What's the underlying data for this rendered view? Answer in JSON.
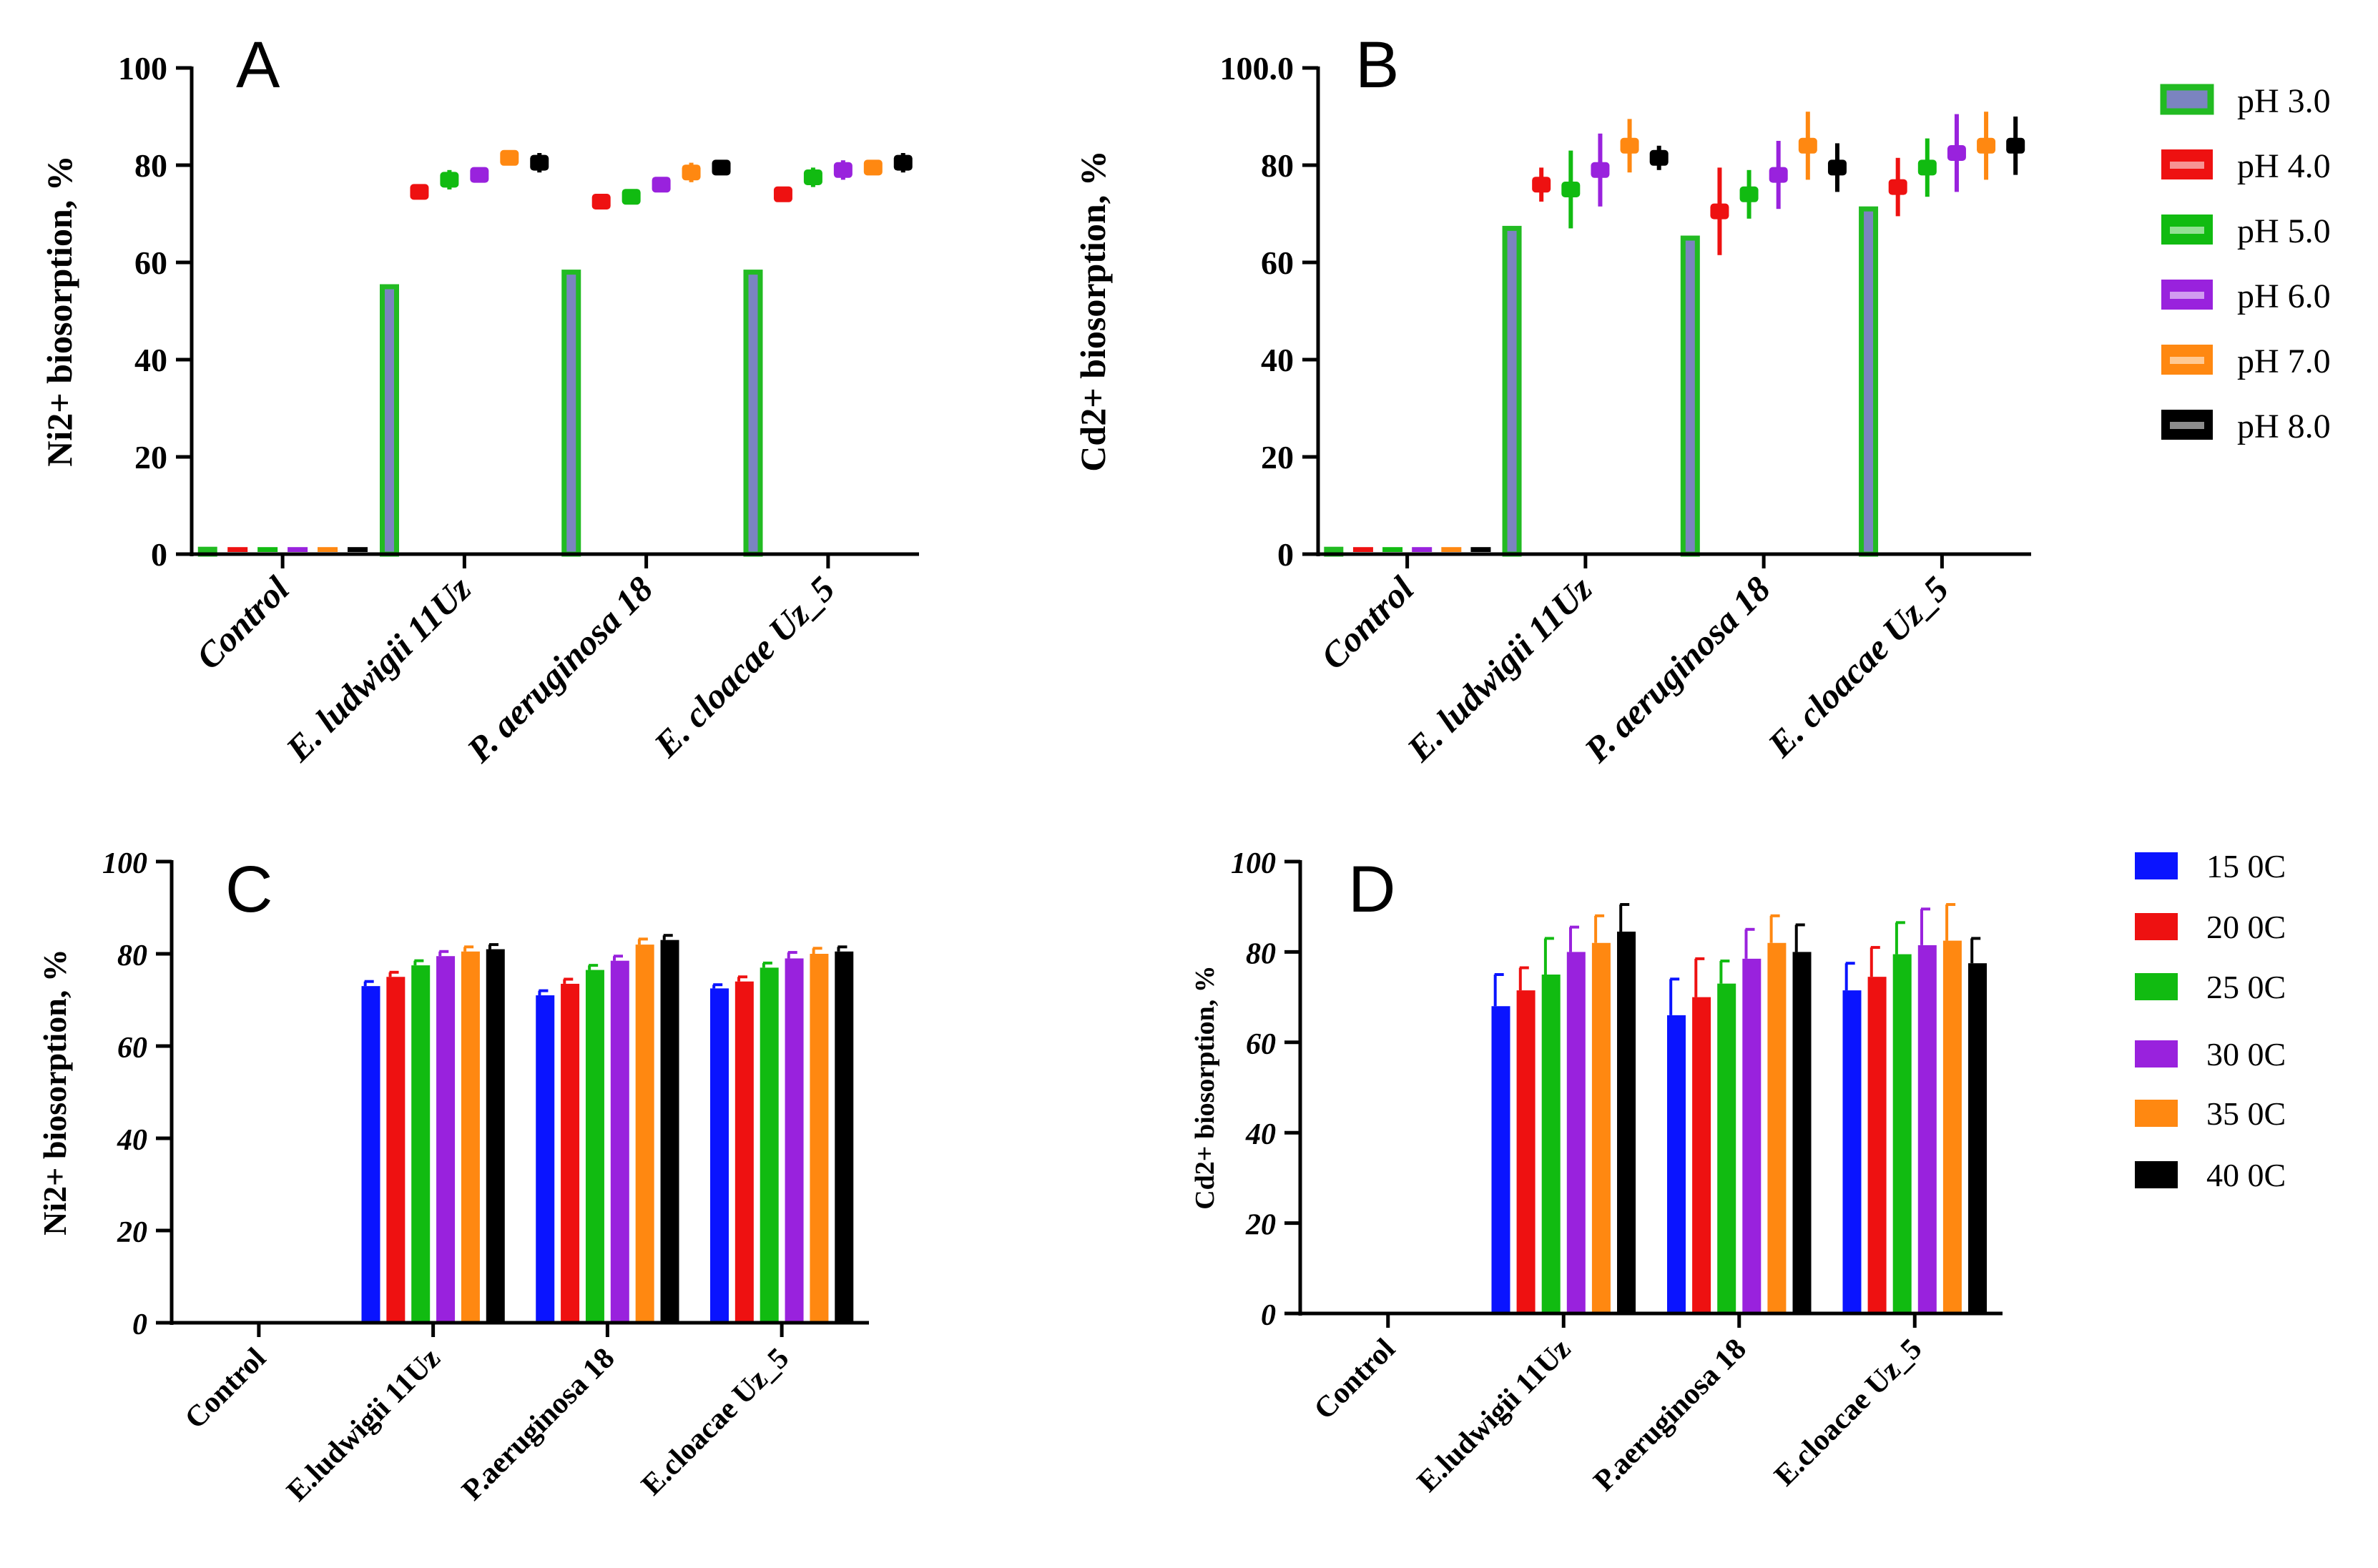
{
  "colors": {
    "pH 3.0": "#22bb22",
    "pH 4.0": "#ee1111",
    "pH 5.0": "#11bb11",
    "pH 6.0": "#9922dd",
    "pH 7.0": "#ff8811",
    "pH 8.0": "#000000",
    "15 0C": "#0a14ff",
    "20 0C": "#ee1111",
    "25 0C": "#11bb11",
    "30 0C": "#9922dd",
    "35 0C": "#ff8811",
    "40 0C": "#000000"
  },
  "legend_ph": [
    "pH 3.0",
    "pH 4.0",
    "pH 5.0",
    "pH 6.0",
    "pH 7.0",
    "pH 8.0"
  ],
  "legend_temp": [
    "15 0C",
    "20 0C",
    "25 0C",
    "30 0C",
    "35 0C",
    "40 0C"
  ],
  "chart_data": [
    {
      "panel": "A",
      "type": "bar",
      "ylabel": "Ni2+ biosorption, %",
      "ylim": [
        0,
        100
      ],
      "yticks": [
        0,
        20,
        40,
        60,
        80,
        100
      ],
      "categories": [
        "Control",
        "E. ludwigii 11Uz",
        "P. aeruginosa 18",
        "E. cloacae Uz_5"
      ],
      "series": [
        {
          "name": "pH 3.0",
          "values": [
            1,
            55,
            58,
            58
          ]
        },
        {
          "name": "pH 4.0",
          "values": [
            1,
            74.5,
            72.5,
            74
          ]
        },
        {
          "name": "pH 5.0",
          "values": [
            1,
            77,
            73.5,
            77.5
          ]
        },
        {
          "name": "pH 6.0",
          "values": [
            1,
            78,
            76,
            79
          ]
        },
        {
          "name": "pH 7.0",
          "values": [
            1,
            81.5,
            78.5,
            79.5
          ]
        },
        {
          "name": "pH 8.0",
          "values": [
            1,
            80.5,
            79.5,
            80.5
          ]
        }
      ],
      "errors": [
        [
          0,
          0,
          0,
          0
        ],
        [
          0,
          1.5,
          1,
          1
        ],
        [
          0,
          2,
          1.5,
          2
        ],
        [
          0,
          1.5,
          1,
          2
        ],
        [
          0,
          1.5,
          2,
          1.5
        ],
        [
          0,
          2,
          1.5,
          2
        ]
      ]
    },
    {
      "panel": "B",
      "type": "bar",
      "ylabel": "Cd2+ biosorption, %",
      "ylim": [
        0,
        100
      ],
      "yticks": [
        0,
        20,
        40,
        60,
        80,
        100
      ],
      "ytick_labels": [
        "0",
        "20",
        "40",
        "60",
        "80",
        "100.0"
      ],
      "categories": [
        "Control",
        "E. ludwigii 11Uz",
        "P. aeruginosa 18",
        "E. cloacae Uz_5"
      ],
      "series": [
        {
          "name": "pH 3.0",
          "values": [
            1,
            67,
            65,
            71
          ]
        },
        {
          "name": "pH 4.0",
          "values": [
            1,
            76,
            70.5,
            75.5
          ]
        },
        {
          "name": "pH 5.0",
          "values": [
            1,
            75,
            74,
            79.5
          ]
        },
        {
          "name": "pH 6.0",
          "values": [
            1,
            79,
            78,
            82.5
          ]
        },
        {
          "name": "pH 7.0",
          "values": [
            1,
            84,
            84,
            84
          ]
        },
        {
          "name": "pH 8.0",
          "values": [
            1,
            81.5,
            79.5,
            84
          ]
        }
      ],
      "errors": [
        [
          0,
          0,
          0,
          0
        ],
        [
          0,
          3.5,
          9,
          6
        ],
        [
          0,
          8,
          5,
          6
        ],
        [
          0,
          7.5,
          7,
          8
        ],
        [
          0,
          5.5,
          7,
          7
        ],
        [
          0,
          2.5,
          5,
          6
        ]
      ]
    },
    {
      "panel": "C",
      "type": "bar",
      "ylabel": "Ni2+ biosorption, %",
      "ylim": [
        0,
        100
      ],
      "yticks": [
        0,
        20,
        40,
        60,
        80,
        100
      ],
      "categories": [
        "Control",
        "E.ludwigii 11Uz",
        "P.aeruginosa 18",
        "E.cloacae Uz_5"
      ],
      "series": [
        {
          "name": "15 0C",
          "values": [
            0,
            73,
            71,
            72.5
          ]
        },
        {
          "name": "20 0C",
          "values": [
            0,
            75,
            73.5,
            74
          ]
        },
        {
          "name": "25 0C",
          "values": [
            0,
            77.5,
            76.5,
            77
          ]
        },
        {
          "name": "30 0C",
          "values": [
            0,
            79.5,
            78.5,
            79
          ]
        },
        {
          "name": "35 0C",
          "values": [
            0,
            80.5,
            82,
            80
          ]
        },
        {
          "name": "40 0C",
          "values": [
            0,
            81,
            83,
            80.5
          ]
        }
      ],
      "errors": [
        [
          0,
          1,
          1,
          0.8
        ],
        [
          0,
          1,
          1,
          1
        ],
        [
          0,
          1,
          1,
          1
        ],
        [
          0,
          1,
          1,
          1.3
        ],
        [
          0,
          1,
          1.2,
          1.2
        ],
        [
          0,
          1,
          1,
          1
        ]
      ]
    },
    {
      "panel": "D",
      "type": "bar",
      "ylabel": "Cd2+ biosorption, %",
      "ylim": [
        0,
        100
      ],
      "yticks": [
        0,
        20,
        40,
        60,
        80,
        100
      ],
      "categories": [
        "Control",
        "E.ludwigii 11Uz",
        "P.aeruginosa 18",
        "E.cloacae Uz_5"
      ],
      "series": [
        {
          "name": "15 0C",
          "values": [
            0,
            68,
            66,
            71.5
          ]
        },
        {
          "name": "20 0C",
          "values": [
            0,
            71.5,
            70,
            74.5
          ]
        },
        {
          "name": "25 0C",
          "values": [
            0,
            75,
            73,
            79.5
          ]
        },
        {
          "name": "30 0C",
          "values": [
            0,
            80,
            78.5,
            81.5
          ]
        },
        {
          "name": "35 0C",
          "values": [
            0,
            82,
            82,
            82.5
          ]
        },
        {
          "name": "40 0C",
          "values": [
            0,
            84.5,
            80,
            77.5
          ]
        }
      ],
      "errors": [
        [
          0,
          7,
          8,
          6
        ],
        [
          0,
          5,
          8.5,
          6.5
        ],
        [
          0,
          8,
          5,
          7
        ],
        [
          0,
          5.5,
          6.5,
          8
        ],
        [
          0,
          6,
          6,
          8
        ],
        [
          0,
          6,
          6,
          5.5
        ]
      ]
    }
  ]
}
